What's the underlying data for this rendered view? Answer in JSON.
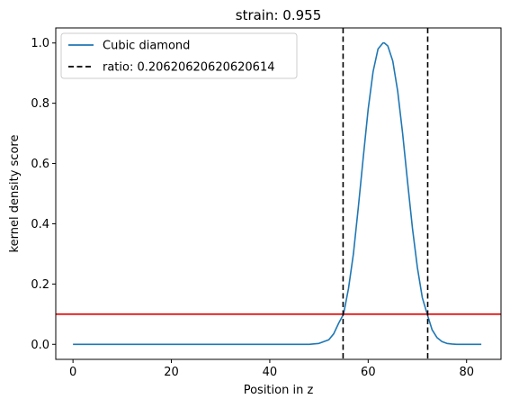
{
  "chart_data": {
    "type": "line",
    "title": "strain: 0.955",
    "xlabel": "Position in z",
    "ylabel": "kernel density score",
    "xlim": [
      -3.5,
      87
    ],
    "ylim": [
      -0.05,
      1.05
    ],
    "xticks": [
      0,
      20,
      40,
      60,
      80
    ],
    "xtick_labels": [
      "0",
      "20",
      "40",
      "60",
      "80"
    ],
    "yticks": [
      0.0,
      0.2,
      0.4,
      0.6,
      0.8,
      1.0
    ],
    "ytick_labels": [
      "0.0",
      "0.2",
      "0.4",
      "0.6",
      "0.8",
      "1.0"
    ],
    "grid": false,
    "legend_position": "top-left",
    "series": [
      {
        "name": "Cubic diamond",
        "color": "#1f77b4",
        "style": "solid",
        "x": [
          0,
          10,
          20,
          30,
          40,
          48,
          50,
          52,
          53,
          54,
          55,
          56,
          57,
          58,
          59,
          60,
          61,
          62,
          63,
          63.3,
          64,
          65,
          66,
          67,
          68,
          69,
          70,
          71,
          72,
          73,
          74,
          75,
          76,
          77,
          78,
          80,
          83
        ],
        "y": [
          0.0,
          0.0,
          0.0,
          0.0,
          0.0,
          0.0,
          0.003,
          0.015,
          0.035,
          0.07,
          0.1,
          0.185,
          0.3,
          0.455,
          0.62,
          0.78,
          0.905,
          0.98,
          1.0,
          1.0,
          0.99,
          0.94,
          0.84,
          0.7,
          0.54,
          0.385,
          0.255,
          0.155,
          0.1,
          0.048,
          0.022,
          0.009,
          0.003,
          0.001,
          0.0,
          0.0,
          0.0
        ]
      }
    ],
    "vlines": [
      {
        "name": "ratio: 0.20620620620620614",
        "x": [
          54.9,
          72.1
        ],
        "color": "#000000",
        "style": "dashed"
      }
    ],
    "hlines": [
      {
        "y": 0.1,
        "color": "#e00000",
        "style": "solid"
      }
    ]
  }
}
